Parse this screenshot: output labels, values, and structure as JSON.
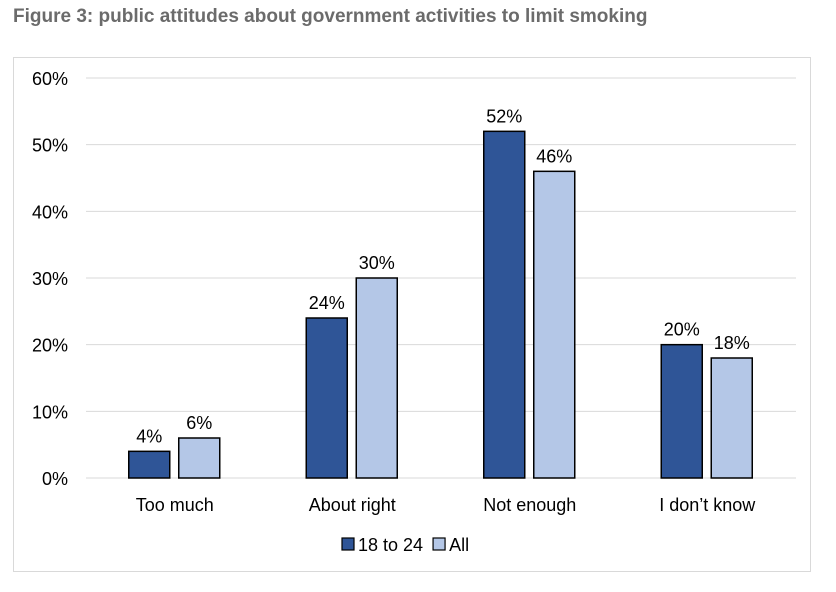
{
  "title": "Figure 3: public attitudes about government activities to limit smoking",
  "chart_data": {
    "type": "bar",
    "title": "",
    "xlabel": "",
    "ylabel": "",
    "categories": [
      "Too much",
      "About right",
      "Not enough",
      "I don’t know"
    ],
    "series": [
      {
        "name": "18 to 24",
        "values": [
          4,
          24,
          52,
          20
        ],
        "labels": [
          "4%",
          "24%",
          "52%",
          "20%"
        ],
        "color": "#2f5597"
      },
      {
        "name": "All",
        "values": [
          6,
          30,
          46,
          18
        ],
        "labels": [
          "6%",
          "30%",
          "46%",
          "18%"
        ],
        "color": "#b4c7e7"
      }
    ],
    "ylim": [
      0,
      60
    ],
    "yticks": [
      0,
      10,
      20,
      30,
      40,
      50,
      60
    ],
    "ytick_labels": [
      "0%",
      "10%",
      "20%",
      "30%",
      "40%",
      "50%",
      "60%"
    ],
    "grid": true,
    "legend": "bottom"
  }
}
